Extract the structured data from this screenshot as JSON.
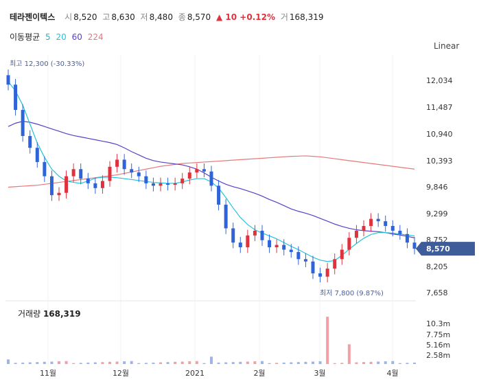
{
  "header": {
    "name": "테라젠이텍스",
    "open_label": "시",
    "open": "8,520",
    "high_label": "고",
    "high": "8,630",
    "low_label": "저",
    "low": "8,480",
    "close_label": "종",
    "close": "8,570",
    "change": "▲ 10 +0.12%",
    "volume_label": "거",
    "volume": "168,319"
  },
  "ma_legend": {
    "title": "이동평균",
    "items": [
      {
        "label": "5",
        "color": "#1fb5c9"
      },
      {
        "label": "20",
        "color": "#22c3dd"
      },
      {
        "label": "60",
        "color": "#5a3ec8"
      },
      {
        "label": "224",
        "color": "#e8777a"
      }
    ]
  },
  "scale_mode": "Linear",
  "price_axis_ticks": [
    "12,034",
    "11,487",
    "10,940",
    "10,393",
    "9,846",
    "9,299",
    "8,752",
    "8,205",
    "7,658"
  ],
  "current_price_tag": "8,570",
  "high_marker": "최고 12,300 (-30.33%)",
  "low_marker": "최저 7,800 (9.87%)",
  "volume_panel": {
    "title": "거래량",
    "value": "168,319",
    "ticks": [
      "10.3m",
      "7.75m",
      "5.16m",
      "2.58m"
    ]
  },
  "x_axis_ticks": [
    "11월",
    "12월",
    "2021",
    "2월",
    "3월",
    "4월"
  ],
  "colors": {
    "up": "#e0323c",
    "down": "#2f64d8",
    "tag": "#3e5b9a"
  },
  "chart_data": {
    "type": "candlestick",
    "price_range": [
      7658,
      12400
    ],
    "volume_range_m": [
      0,
      12
    ],
    "ma_lines": {
      "ma20": [
        12100,
        11900,
        11600,
        11200,
        10800,
        10500,
        10250,
        10100,
        10000,
        9970,
        9950,
        10000,
        10060,
        10080,
        10080,
        10070,
        10050,
        10030,
        10010,
        9990,
        9970,
        9960,
        9950,
        9950,
        9980,
        10020,
        10050,
        10050,
        9980,
        9850,
        9650,
        9430,
        9230,
        9080,
        8970,
        8900,
        8840,
        8780,
        8700,
        8620,
        8550,
        8470,
        8390,
        8330,
        8300,
        8320,
        8430,
        8560,
        8680,
        8790,
        8870,
        8910,
        8910,
        8900,
        8880,
        8860,
        8840
      ],
      "ma60": [
        11150,
        11220,
        11260,
        11240,
        11200,
        11150,
        11100,
        11050,
        11000,
        10960,
        10930,
        10900,
        10870,
        10840,
        10810,
        10770,
        10700,
        10620,
        10550,
        10480,
        10430,
        10400,
        10380,
        10360,
        10340,
        10300,
        10250,
        10170,
        10080,
        10000,
        9930,
        9880,
        9840,
        9790,
        9740,
        9680,
        9610,
        9550,
        9480,
        9410,
        9360,
        9320,
        9270,
        9210,
        9150,
        9090,
        9040,
        9000,
        8970,
        8950,
        8940,
        8930,
        8910,
        8880,
        8860,
        8830,
        8800
      ],
      "ma224": [
        9870,
        9880,
        9890,
        9900,
        9910,
        9930,
        9950,
        9970,
        9990,
        10010,
        10030,
        10050,
        10070,
        10090,
        10110,
        10130,
        10160,
        10190,
        10220,
        10250,
        10280,
        10310,
        10330,
        10350,
        10370,
        10380,
        10390,
        10400,
        10410,
        10420,
        10430,
        10440,
        10450,
        10460,
        10470,
        10480,
        10490,
        10500,
        10510,
        10520,
        10525,
        10530,
        10520,
        10510,
        10490,
        10470,
        10450,
        10430,
        10410,
        10390,
        10370,
        10350,
        10330,
        10310,
        10290,
        10270,
        10250
      ]
    },
    "candles_close": [
      12034,
      11500,
      10950,
      10700,
      10400,
      10100,
      9700,
      9750,
      10100,
      10250,
      10050,
      9950,
      9850,
      10000,
      10300,
      10450,
      10250,
      10180,
      10100,
      9950,
      9900,
      9950,
      9920,
      9950,
      10050,
      10180,
      10250,
      10200,
      9900,
      9500,
      9000,
      8700,
      8600,
      8850,
      8950,
      8750,
      8600,
      8650,
      8550,
      8500,
      8350,
      8300,
      8050,
      7980,
      8150,
      8350,
      8550,
      8800,
      8950,
      9050,
      9200,
      9150,
      9050,
      8950,
      8880,
      8700,
      8570
    ]
  }
}
